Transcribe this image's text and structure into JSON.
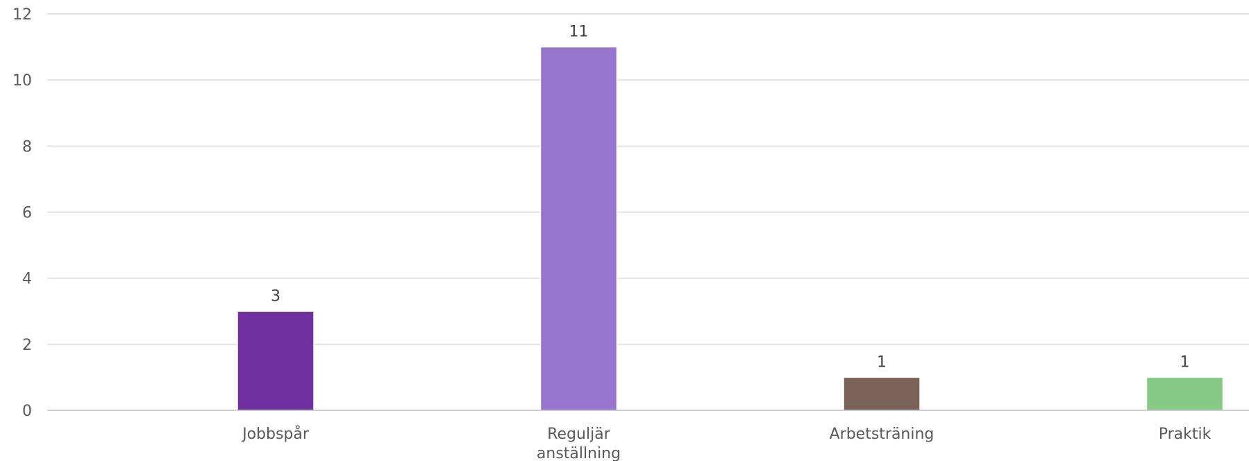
{
  "chart_data": {
    "type": "bar",
    "title": "",
    "xlabel": "",
    "ylabel": "",
    "ylim": [
      0,
      12
    ],
    "yticks": [
      0,
      2,
      4,
      6,
      8,
      10,
      12
    ],
    "grid": true,
    "legend": "none",
    "categories": [
      [
        "Jobbspår"
      ],
      [
        "Reguljär",
        "anställning"
      ],
      [
        "Arbetsträning"
      ],
      [
        "Praktik"
      ]
    ],
    "values": [
      3,
      11,
      1,
      1
    ],
    "data_labels": [
      "3",
      "11",
      "1",
      "1"
    ],
    "colors": [
      "#7030a0",
      "#9575cd",
      "#7b6258",
      "#85ca85"
    ]
  }
}
